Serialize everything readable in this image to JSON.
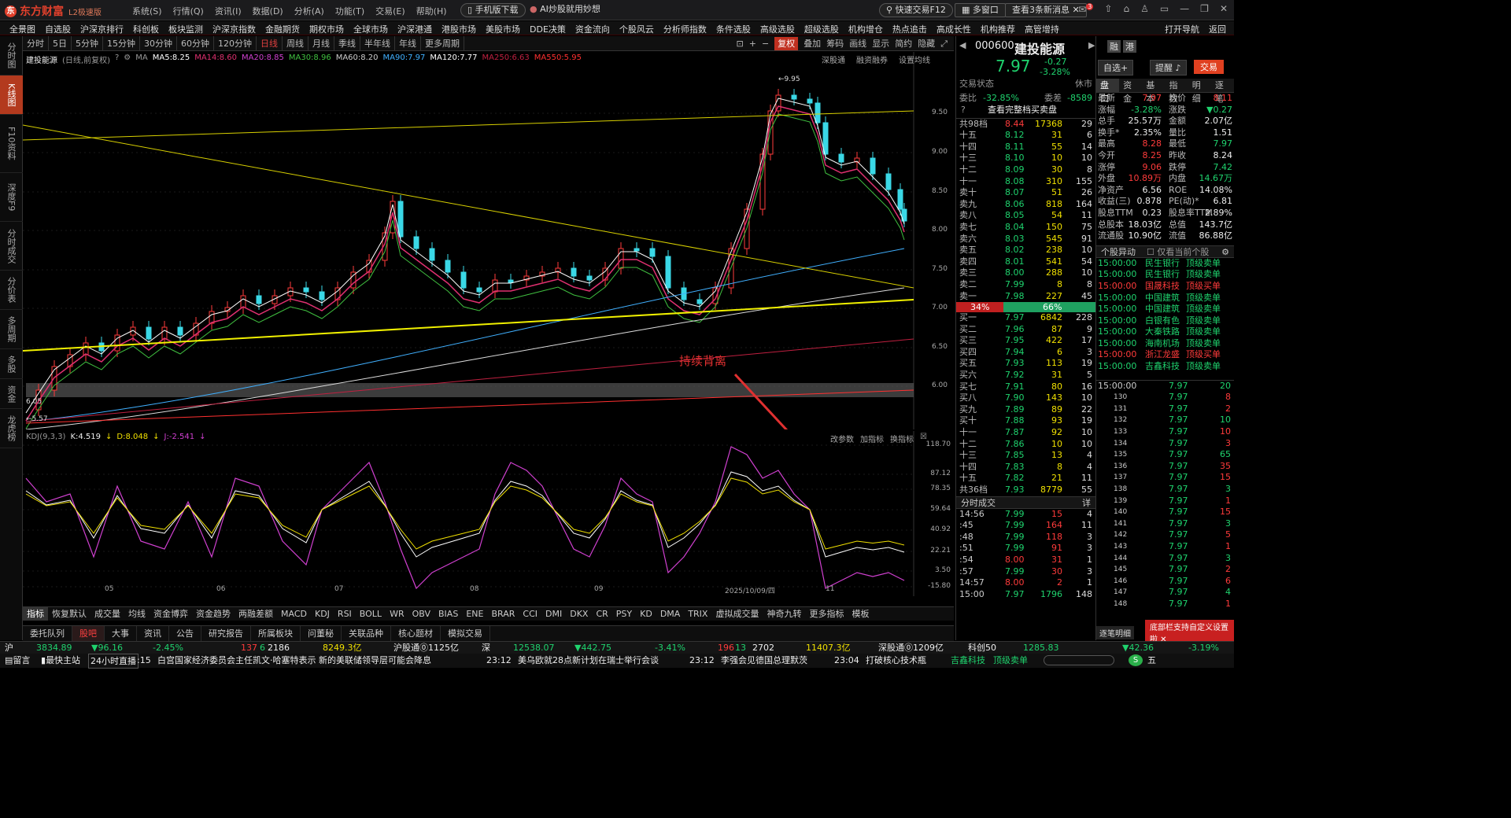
{
  "app": {
    "name": "东方财富",
    "edition": "L2极速版",
    "menus": [
      "系统(S)",
      "行情(Q)",
      "资讯(I)",
      "数据(D)",
      "分析(A)",
      "功能(T)",
      "交易(E)",
      "帮助(H)"
    ],
    "mobile_btn": "手机版下载",
    "ai_btn": "AI炒股就用妙想",
    "fast_trade": "快速交易F12",
    "multi_window": "多窗口",
    "news_btn": "查看3条新消息",
    "notif_count": "3"
  },
  "nav": {
    "items": [
      "全景图",
      "自选股",
      "沪深京排行",
      "科创板",
      "板块监测",
      "沪深京指数",
      "金融期货",
      "期权市场",
      "全球市场",
      "沪深港通",
      "港股市场",
      "美股市场",
      "DDE决策",
      "资金流向",
      "个股风云",
      "分析师指数",
      "条件选股",
      "高级选股",
      "超级选股",
      "机构增仓",
      "热点追击",
      "高成长性",
      "机构推荐",
      "高管增持"
    ],
    "right": [
      "打开导航",
      "返回"
    ]
  },
  "leftnav": [
    {
      "label": "分时图",
      "active": false
    },
    {
      "label": "K线图",
      "active": true
    },
    {
      "label": "F10资料",
      "active": false
    },
    {
      "label": "深度F9",
      "active": false
    },
    {
      "label": "分时成交",
      "active": false
    },
    {
      "label": "分价表",
      "active": false
    },
    {
      "label": "多周期",
      "active": false
    },
    {
      "label": "多股",
      "active": false
    },
    {
      "label": "资金",
      "active": false
    },
    {
      "label": "龙虎榜",
      "active": false
    }
  ],
  "periods": [
    {
      "label": "分时",
      "active": false
    },
    {
      "label": "5日",
      "active": false
    },
    {
      "label": "5分钟",
      "active": false
    },
    {
      "label": "15分钟",
      "active": false
    },
    {
      "label": "30分钟",
      "active": false
    },
    {
      "label": "60分钟",
      "active": false
    },
    {
      "label": "120分钟",
      "active": false
    },
    {
      "label": "日线",
      "active": true
    },
    {
      "label": "周线",
      "active": false
    },
    {
      "label": "月线",
      "active": false
    },
    {
      "label": "季线",
      "active": false
    },
    {
      "label": "半年线",
      "active": false
    },
    {
      "label": "年线",
      "active": false
    },
    {
      "label": "更多周期",
      "active": false
    }
  ],
  "tools": [
    "复权",
    "叠加",
    "筹码",
    "画线",
    "显示",
    "简约",
    "隐藏"
  ],
  "chart": {
    "stock_title": "建投能源",
    "mode": "(日线,前复权)",
    "ma": [
      {
        "label": "MA5:8.25",
        "color": "#ffffff"
      },
      {
        "label": "MA14:8.60",
        "color": "#e03070"
      },
      {
        "label": "MA20:8.85",
        "color": "#d040d0"
      },
      {
        "label": "MA30:8.96",
        "color": "#40c040"
      },
      {
        "label": "MA60:8.20",
        "color": "#cccccc"
      },
      {
        "label": "MA90:7.97",
        "color": "#40b0ff"
      },
      {
        "label": "MA120:7.77",
        "color": "#ffffff"
      },
      {
        "label": "MA250:6.63",
        "color": "#c02040"
      },
      {
        "label": "MA550:5.95",
        "color": "#ff3030"
      }
    ],
    "toplinks": [
      "深股通",
      "融资融券",
      "设置均线"
    ],
    "yticks": [
      "9.50",
      "9.00",
      "8.50",
      "8.00",
      "7.50",
      "7.00",
      "6.50",
      "6.00"
    ],
    "high_label": "9.95",
    "low_label": "5.57",
    "low2_label": "6.05",
    "annotation": "持续背离",
    "xticks": [
      "05",
      "06",
      "07",
      "08",
      "09",
      "2025/10/09/四",
      "11"
    ]
  },
  "ind": {
    "title": "KDJ(9,3,3)",
    "k": "K:4.519",
    "d": "D:8.048",
    "j": "J:-2.541",
    "links": [
      "改参数",
      "加指标",
      "换指标"
    ],
    "yticks": [
      "118.70",
      "87.12",
      "78.35",
      "59.64",
      "40.92",
      "22.21",
      "3.50",
      "-15.80"
    ]
  },
  "indicator_tabs": [
    {
      "label": "指标",
      "active": true
    },
    {
      "label": "恢复默认",
      "active": false
    },
    {
      "label": "成交量",
      "active": false
    },
    {
      "label": "均线",
      "active": false
    },
    {
      "label": "资金博弈",
      "active": false
    },
    {
      "label": "资金趋势",
      "active": false
    },
    {
      "label": "两融差额",
      "active": false
    },
    {
      "label": "MACD",
      "active": false
    },
    {
      "label": "KDJ",
      "active": false
    },
    {
      "label": "RSI",
      "active": false
    },
    {
      "label": "BOLL",
      "active": false
    },
    {
      "label": "WR",
      "active": false
    },
    {
      "label": "OBV",
      "active": false
    },
    {
      "label": "BIAS",
      "active": false
    },
    {
      "label": "ENE",
      "active": false
    },
    {
      "label": "BRAR",
      "active": false
    },
    {
      "label": "CCI",
      "active": false
    },
    {
      "label": "DMI",
      "active": false
    },
    {
      "label": "DKX",
      "active": false
    },
    {
      "label": "CR",
      "active": false
    },
    {
      "label": "PSY",
      "active": false
    },
    {
      "label": "KD",
      "active": false
    },
    {
      "label": "DMA",
      "active": false
    },
    {
      "label": "TRIX",
      "active": false
    },
    {
      "label": "虚拟成交量",
      "active": false
    },
    {
      "label": "神奇九转",
      "active": false
    },
    {
      "label": "更多指标",
      "active": false
    },
    {
      "label": "模板",
      "active": false
    }
  ],
  "bottom_tabs": [
    {
      "label": "委托队列",
      "active": false
    },
    {
      "label": "股吧",
      "active": true
    },
    {
      "label": "大事",
      "active": false
    },
    {
      "label": "资讯",
      "active": false
    },
    {
      "label": "公告",
      "active": false
    },
    {
      "label": "研究报告",
      "active": false
    },
    {
      "label": "所属板块",
      "active": false
    },
    {
      "label": "问董秘",
      "active": false
    },
    {
      "label": "关联品种",
      "active": false
    },
    {
      "label": "核心题材",
      "active": false
    },
    {
      "label": "模拟交易",
      "active": false
    }
  ],
  "quote": {
    "code": "000600",
    "name": "建投能源",
    "price": "7.97",
    "change": "-0.27",
    "pct": "-3.28%",
    "btns": [
      "自选+",
      "提醒",
      "交易"
    ],
    "status_label": "交易状态",
    "status": "休市",
    "wb_label": "委比",
    "wb": "-32.85%",
    "wc_label": "委差",
    "wc": "-8589",
    "full_book": "查看完整档买卖盘",
    "ask_total": [
      "共98档",
      "8.44",
      "17368",
      "29"
    ],
    "asks": [
      [
        "十五",
        "8.12",
        "31",
        "6"
      ],
      [
        "十四",
        "8.11",
        "55",
        "14"
      ],
      [
        "十三",
        "8.10",
        "10",
        "10"
      ],
      [
        "十二",
        "8.09",
        "30",
        "8"
      ],
      [
        "十一",
        "8.08",
        "310",
        "155"
      ],
      [
        "卖十",
        "8.07",
        "51",
        "26"
      ],
      [
        "卖九",
        "8.06",
        "818",
        "164"
      ],
      [
        "卖八",
        "8.05",
        "54",
        "11"
      ],
      [
        "卖七",
        "8.04",
        "150",
        "75"
      ],
      [
        "卖六",
        "8.03",
        "545",
        "91"
      ],
      [
        "卖五",
        "8.02",
        "238",
        "10"
      ],
      [
        "卖四",
        "8.01",
        "541",
        "54"
      ],
      [
        "卖三",
        "8.00",
        "288",
        "10"
      ],
      [
        "卖二",
        "7.99",
        "8",
        "8"
      ],
      [
        "卖一",
        "7.98",
        "227",
        "45"
      ]
    ],
    "ratio_buy": "34%",
    "ratio_sell": "66%",
    "bids": [
      [
        "买一",
        "7.97",
        "6842",
        "228"
      ],
      [
        "买二",
        "7.96",
        "87",
        "9"
      ],
      [
        "买三",
        "7.95",
        "422",
        "17"
      ],
      [
        "买四",
        "7.94",
        "6",
        "3"
      ],
      [
        "买五",
        "7.93",
        "113",
        "19"
      ],
      [
        "买六",
        "7.92",
        "31",
        "5"
      ],
      [
        "买七",
        "7.91",
        "80",
        "16"
      ],
      [
        "买八",
        "7.90",
        "143",
        "10"
      ],
      [
        "买九",
        "7.89",
        "89",
        "22"
      ],
      [
        "买十",
        "7.88",
        "93",
        "19"
      ],
      [
        "十一",
        "7.87",
        "92",
        "10"
      ],
      [
        "十二",
        "7.86",
        "10",
        "10"
      ],
      [
        "十三",
        "7.85",
        "13",
        "4"
      ],
      [
        "十四",
        "7.83",
        "8",
        "4"
      ],
      [
        "十五",
        "7.82",
        "21",
        "11"
      ]
    ],
    "bid_total": [
      "共36档",
      "7.93",
      "8779",
      "55"
    ],
    "trades_title": "分时成交",
    "trades_more": "详",
    "trades": [
      [
        "14:56",
        "7.99",
        "15",
        "4"
      ],
      [
        ":45",
        "7.99",
        "164",
        "11"
      ],
      [
        ":48",
        "7.99",
        "118",
        "3"
      ],
      [
        ":51",
        "7.99",
        "91",
        "3"
      ],
      [
        ":54",
        "8.00",
        "31",
        "1"
      ],
      [
        ":57",
        "7.99",
        "30",
        "3"
      ],
      [
        "14:57",
        "8.00",
        "2",
        "1"
      ],
      [
        "15:00",
        "7.97",
        "1796",
        "148"
      ]
    ]
  },
  "stats": {
    "tabs": [
      "盘口",
      "资金",
      "基本",
      "指数",
      "明细",
      "逐笔"
    ],
    "rows": [
      [
        "最新",
        "7.97",
        "均价",
        "8.11"
      ],
      [
        "涨幅",
        "-3.28%",
        "涨跌",
        "▼0.27"
      ],
      [
        "总手",
        "25.57万",
        "金额",
        "2.07亿"
      ],
      [
        "换手*",
        "2.35%",
        "量比",
        "1.51"
      ],
      [
        "最高",
        "8.28",
        "最低",
        "7.97"
      ],
      [
        "今开",
        "8.25",
        "昨收",
        "8.24"
      ],
      [
        "涨停",
        "9.06",
        "跌停",
        "7.42"
      ],
      [
        "外盘",
        "10.89万",
        "内盘",
        "14.67万"
      ],
      [
        "净资产",
        "6.56",
        "ROE",
        "14.08%"
      ],
      [
        "收益(三)",
        "0.878",
        "PE(动)*",
        "6.81"
      ],
      [
        "股息TTM",
        "0.23",
        "股息率TTM",
        "2.89%"
      ],
      [
        "总股本",
        "18.03亿",
        "总值",
        "143.7亿"
      ],
      [
        "流通股",
        "10.90亿",
        "流值",
        "86.88亿"
      ]
    ],
    "ydtitle": "个股异动",
    "ydopt": "仅看当前个股",
    "movers": [
      [
        "15:00:00",
        "民生银行",
        "顶级卖单"
      ],
      [
        "15:00:00",
        "民生银行",
        "顶级卖单"
      ],
      [
        "15:00:00",
        "国晟科技",
        "顶级买单"
      ],
      [
        "15:00:00",
        "中国建筑",
        "顶级卖单"
      ],
      [
        "15:00:00",
        "中国建筑",
        "顶级卖单"
      ],
      [
        "15:00:00",
        "白银有色",
        "顶级卖单"
      ],
      [
        "15:00:00",
        "大秦铁路",
        "顶级卖单"
      ],
      [
        "15:00:00",
        "海南机场",
        "顶级卖单"
      ],
      [
        "15:00:00",
        "浙江龙盛",
        "顶级买单"
      ],
      [
        "15:00:00",
        "吉鑫科技",
        "顶级卖单"
      ]
    ],
    "ticks": [
      [
        "15:00:00",
        "7.97",
        "20"
      ],
      [
        "130",
        "7.97",
        "8"
      ],
      [
        "131",
        "7.97",
        "2"
      ],
      [
        "132",
        "7.97",
        "10"
      ],
      [
        "133",
        "7.97",
        "10"
      ],
      [
        "134",
        "7.97",
        "3"
      ],
      [
        "135",
        "7.97",
        "65"
      ],
      [
        "136",
        "7.97",
        "35"
      ],
      [
        "137",
        "7.97",
        "15"
      ],
      [
        "138",
        "7.97",
        "3"
      ],
      [
        "139",
        "7.97",
        "1"
      ],
      [
        "140",
        "7.97",
        "15"
      ],
      [
        "141",
        "7.97",
        "3"
      ],
      [
        "142",
        "7.97",
        "5"
      ],
      [
        "143",
        "7.97",
        "1"
      ],
      [
        "144",
        "7.97",
        "3"
      ],
      [
        "145",
        "7.97",
        "2"
      ],
      [
        "146",
        "7.97",
        "6"
      ],
      [
        "147",
        "7.97",
        "4"
      ],
      [
        "148",
        "7.97",
        "1"
      ]
    ],
    "tabs2": [
      "逐笔明细"
    ],
    "popup": "底部栏支持自定义设置啦"
  },
  "status": {
    "sh_label": "沪",
    "sh": "3834.89",
    "sh_chg": "96.16",
    "sh_pct": "-2.45%",
    "sh_up": "137",
    "sh_down": "6",
    "sh_flat": "2186",
    "sh_amt": "8249.3亿",
    "hgt_label": "沪股通",
    "hgt": "1125亿",
    "sz_label": "深",
    "sz": "12538.07",
    "sz_chg": "442.75",
    "sz_pct": "-3.41%",
    "sz_up": "196",
    "sz_down": "13",
    "sz_flat": "2702",
    "sz_amt": "11407.3亿",
    "sgt_label": "深股通",
    "sgt": "1209亿",
    "kc_label": "科创50",
    "kc": "1285.83",
    "kc_chg": "42.36",
    "kc_pct": "-3.19%"
  },
  "ticker": {
    "left": "留言",
    "main": "最快主站",
    "live": "24小时直播",
    "t1": ":15",
    "n1": "白宫国家经济委员会主任凯文·哈塞特表示 新的美联储领导层可能会降息",
    "t2": "23:12",
    "n2": "美乌欧就28点新计划在瑞士举行会谈",
    "t3": "23:12",
    "n3": "李强会见德国总理默茨",
    "t4": "23:04",
    "n4": "打破核心技术瓶",
    "s1": "吉鑫科技",
    "s2": "顶级卖单",
    "end": "五"
  }
}
